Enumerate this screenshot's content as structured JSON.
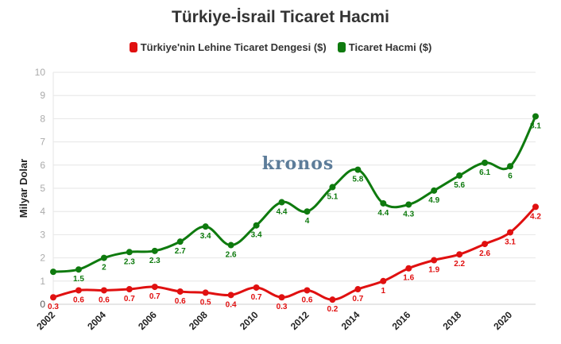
{
  "chart_data": {
    "type": "line",
    "title": "Türkiye-İsrail Ticaret Hacmi",
    "ylabel": "Milyar Dolar",
    "xlabel": "",
    "ylim": [
      0,
      10
    ],
    "yticks": [
      "0",
      "1",
      "2",
      "3",
      "4",
      "5",
      "6",
      "7",
      "8",
      "9",
      "10"
    ],
    "xticks": [
      "2002",
      "2004",
      "2006",
      "2008",
      "2010",
      "2012",
      "2014",
      "2016",
      "2018",
      "2020"
    ],
    "x": [
      2002,
      2003,
      2004,
      2005,
      2006,
      2007,
      2008,
      2009,
      2010,
      2011,
      2012,
      2013,
      2014,
      2015,
      2016,
      2017,
      2018,
      2019,
      2020,
      2021
    ],
    "grid": true,
    "legend_position": "top-center",
    "series": [
      {
        "name": "Türkiye'nin Lehine Ticaret Dengesi ($)",
        "color": "#e01010",
        "values": [
          0.3,
          0.6,
          0.6,
          0.65,
          0.75,
          0.55,
          0.5,
          0.4,
          0.72,
          0.3,
          0.6,
          0.2,
          0.65,
          1.0,
          1.55,
          1.9,
          2.15,
          2.6,
          3.1,
          4.2
        ],
        "labels": [
          "0.3",
          "0.6",
          "0.6",
          "0.7",
          "0.7",
          "0.6",
          "0.5",
          "0.4",
          "0.7",
          "0.3",
          "0.6",
          "0.2",
          "0.7",
          "1",
          "1.6",
          "1.9",
          "2.2",
          "2.6",
          "3.1",
          "4.2"
        ]
      },
      {
        "name": "Ticaret Hacmi ($)",
        "color": "#0e7a0e",
        "values": [
          1.4,
          1.5,
          2.0,
          2.25,
          2.3,
          2.7,
          3.35,
          2.55,
          3.4,
          4.4,
          4.0,
          5.05,
          5.8,
          4.35,
          4.3,
          4.9,
          5.55,
          6.1,
          5.95,
          8.1
        ],
        "labels": [
          "",
          "1.5",
          "2",
          "2.3",
          "2.3",
          "2.7",
          "3.4",
          "2.6",
          "3.4",
          "4.4",
          "4",
          "5.1",
          "5.8",
          "4.4",
          "4.3",
          "4.9",
          "5.6",
          "6.1",
          "6",
          "8.1"
        ]
      }
    ],
    "watermark": "kronos"
  }
}
